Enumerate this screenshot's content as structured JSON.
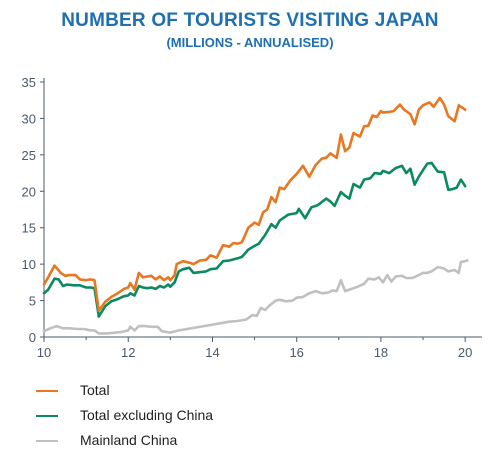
{
  "header": {
    "title": "NUMBER OF TOURISTS VISITING JAPAN",
    "subtitle": "(MILLIONS - ANNUALISED)"
  },
  "chart_data": {
    "type": "line",
    "title": "NUMBER OF TOURISTS VISITING JAPAN",
    "subtitle": "(MILLIONS - ANNUALISED)",
    "xlabel": "",
    "ylabel": "",
    "xlim": [
      10,
      20.4
    ],
    "ylim": [
      0,
      35
    ],
    "xticks": [
      10,
      12,
      14,
      16,
      18,
      20
    ],
    "yticks": [
      0,
      5,
      10,
      15,
      20,
      25,
      30,
      35
    ],
    "grid": false,
    "legend_position": "bottom-left",
    "series": [
      {
        "name": "Total",
        "color": "#e87722",
        "points": [
          [
            10.0,
            7.2
          ],
          [
            10.1,
            8.2
          ],
          [
            10.25,
            9.8
          ],
          [
            10.4,
            8.8
          ],
          [
            10.5,
            8.4
          ],
          [
            10.6,
            8.5
          ],
          [
            10.75,
            8.5
          ],
          [
            10.85,
            7.9
          ],
          [
            11.0,
            7.8
          ],
          [
            11.1,
            7.9
          ],
          [
            11.2,
            7.8
          ],
          [
            11.3,
            3.6
          ],
          [
            11.45,
            4.8
          ],
          [
            11.6,
            5.5
          ],
          [
            11.75,
            6.0
          ],
          [
            11.9,
            6.6
          ],
          [
            12.0,
            6.8
          ],
          [
            12.05,
            7.4
          ],
          [
            12.15,
            6.5
          ],
          [
            12.25,
            8.8
          ],
          [
            12.35,
            8.2
          ],
          [
            12.45,
            8.3
          ],
          [
            12.55,
            8.4
          ],
          [
            12.65,
            7.9
          ],
          [
            12.75,
            8.3
          ],
          [
            12.85,
            7.8
          ],
          [
            12.95,
            8.2
          ],
          [
            13.0,
            7.8
          ],
          [
            13.1,
            8.5
          ],
          [
            13.15,
            10.0
          ],
          [
            13.3,
            10.4
          ],
          [
            13.45,
            10.2
          ],
          [
            13.55,
            10.0
          ],
          [
            13.7,
            10.5
          ],
          [
            13.85,
            10.6
          ],
          [
            13.95,
            11.2
          ],
          [
            14.1,
            10.9
          ],
          [
            14.25,
            12.6
          ],
          [
            14.4,
            12.4
          ],
          [
            14.5,
            12.9
          ],
          [
            14.6,
            12.8
          ],
          [
            14.7,
            13.0
          ],
          [
            14.85,
            15.0
          ],
          [
            15.0,
            15.7
          ],
          [
            15.1,
            15.4
          ],
          [
            15.2,
            17.1
          ],
          [
            15.3,
            17.5
          ],
          [
            15.4,
            19.2
          ],
          [
            15.5,
            18.5
          ],
          [
            15.6,
            20.5
          ],
          [
            15.7,
            20.3
          ],
          [
            15.85,
            21.5
          ],
          [
            16.0,
            22.4
          ],
          [
            16.15,
            23.5
          ],
          [
            16.3,
            22.0
          ],
          [
            16.45,
            23.6
          ],
          [
            16.6,
            24.5
          ],
          [
            16.7,
            24.6
          ],
          [
            16.8,
            25.2
          ],
          [
            16.95,
            24.6
          ],
          [
            17.05,
            27.8
          ],
          [
            17.15,
            25.5
          ],
          [
            17.25,
            26.0
          ],
          [
            17.35,
            28.0
          ],
          [
            17.5,
            27.5
          ],
          [
            17.6,
            28.9
          ],
          [
            17.7,
            29.0
          ],
          [
            17.8,
            30.4
          ],
          [
            17.9,
            30.2
          ],
          [
            18.0,
            31.0
          ],
          [
            18.05,
            30.8
          ],
          [
            18.2,
            30.9
          ],
          [
            18.3,
            31.0
          ],
          [
            18.45,
            31.9
          ],
          [
            18.55,
            31.2
          ],
          [
            18.7,
            30.6
          ],
          [
            18.8,
            29.2
          ],
          [
            18.9,
            31.2
          ],
          [
            19.0,
            31.8
          ],
          [
            19.15,
            32.2
          ],
          [
            19.25,
            31.6
          ],
          [
            19.4,
            32.8
          ],
          [
            19.5,
            31.9
          ],
          [
            19.6,
            30.3
          ],
          [
            19.75,
            29.6
          ],
          [
            19.85,
            31.8
          ],
          [
            19.95,
            31.4
          ],
          [
            20.0,
            31.2
          ]
        ]
      },
      {
        "name": "Total excluding China",
        "color": "#0b8a5f",
        "points": [
          [
            10.0,
            6.0
          ],
          [
            10.1,
            6.5
          ],
          [
            10.25,
            8.0
          ],
          [
            10.35,
            7.9
          ],
          [
            10.45,
            7.0
          ],
          [
            10.55,
            7.2
          ],
          [
            10.7,
            7.1
          ],
          [
            10.85,
            7.1
          ],
          [
            11.0,
            6.8
          ],
          [
            11.1,
            6.8
          ],
          [
            11.2,
            6.7
          ],
          [
            11.3,
            2.8
          ],
          [
            11.45,
            4.2
          ],
          [
            11.6,
            4.9
          ],
          [
            11.75,
            5.2
          ],
          [
            11.9,
            5.6
          ],
          [
            12.0,
            5.7
          ],
          [
            12.05,
            6.0
          ],
          [
            12.15,
            5.7
          ],
          [
            12.25,
            7.0
          ],
          [
            12.35,
            6.8
          ],
          [
            12.45,
            6.7
          ],
          [
            12.55,
            6.8
          ],
          [
            12.65,
            6.6
          ],
          [
            12.75,
            7.0
          ],
          [
            12.85,
            6.8
          ],
          [
            12.95,
            7.2
          ],
          [
            13.0,
            6.9
          ],
          [
            13.1,
            7.5
          ],
          [
            13.2,
            9.0
          ],
          [
            13.3,
            9.3
          ],
          [
            13.45,
            9.5
          ],
          [
            13.55,
            8.8
          ],
          [
            13.7,
            8.9
          ],
          [
            13.85,
            9.0
          ],
          [
            13.95,
            9.3
          ],
          [
            14.1,
            9.4
          ],
          [
            14.25,
            10.4
          ],
          [
            14.4,
            10.5
          ],
          [
            14.6,
            10.8
          ],
          [
            14.7,
            11.0
          ],
          [
            14.85,
            12.0
          ],
          [
            15.0,
            12.5
          ],
          [
            15.1,
            12.8
          ],
          [
            15.25,
            14.0
          ],
          [
            15.4,
            15.5
          ],
          [
            15.5,
            15.0
          ],
          [
            15.6,
            16.0
          ],
          [
            15.8,
            16.8
          ],
          [
            16.0,
            17.0
          ],
          [
            16.05,
            17.6
          ],
          [
            16.2,
            16.3
          ],
          [
            16.35,
            17.8
          ],
          [
            16.5,
            18.1
          ],
          [
            16.7,
            19.0
          ],
          [
            16.8,
            18.6
          ],
          [
            16.9,
            18.0
          ],
          [
            17.05,
            19.9
          ],
          [
            17.15,
            19.4
          ],
          [
            17.25,
            19.0
          ],
          [
            17.35,
            21.0
          ],
          [
            17.5,
            20.5
          ],
          [
            17.6,
            21.6
          ],
          [
            17.75,
            21.8
          ],
          [
            17.85,
            22.5
          ],
          [
            18.0,
            22.4
          ],
          [
            18.05,
            22.8
          ],
          [
            18.2,
            22.5
          ],
          [
            18.35,
            23.2
          ],
          [
            18.5,
            23.5
          ],
          [
            18.6,
            22.5
          ],
          [
            18.7,
            23.1
          ],
          [
            18.8,
            20.9
          ],
          [
            18.9,
            22.0
          ],
          [
            19.0,
            22.9
          ],
          [
            19.1,
            23.8
          ],
          [
            19.2,
            23.9
          ],
          [
            19.35,
            22.7
          ],
          [
            19.5,
            22.6
          ],
          [
            19.6,
            20.2
          ],
          [
            19.7,
            20.3
          ],
          [
            19.8,
            20.5
          ],
          [
            19.9,
            21.6
          ],
          [
            20.0,
            20.7
          ]
        ]
      },
      {
        "name": "Mainland China",
        "color": "#c0c0c0",
        "points": [
          [
            10.0,
            0.8
          ],
          [
            10.15,
            1.2
          ],
          [
            10.3,
            1.5
          ],
          [
            10.45,
            1.2
          ],
          [
            10.6,
            1.2
          ],
          [
            10.8,
            1.1
          ],
          [
            10.95,
            1.1
          ],
          [
            11.1,
            0.9
          ],
          [
            11.2,
            0.9
          ],
          [
            11.3,
            0.5
          ],
          [
            11.5,
            0.5
          ],
          [
            11.7,
            0.6
          ],
          [
            11.85,
            0.7
          ],
          [
            12.0,
            0.9
          ],
          [
            12.05,
            1.4
          ],
          [
            12.15,
            0.9
          ],
          [
            12.25,
            1.5
          ],
          [
            12.4,
            1.5
          ],
          [
            12.55,
            1.4
          ],
          [
            12.7,
            1.4
          ],
          [
            12.8,
            0.8
          ],
          [
            13.0,
            0.6
          ],
          [
            13.2,
            0.9
          ],
          [
            13.4,
            1.1
          ],
          [
            13.6,
            1.3
          ],
          [
            13.8,
            1.5
          ],
          [
            14.0,
            1.7
          ],
          [
            14.2,
            1.9
          ],
          [
            14.4,
            2.1
          ],
          [
            14.6,
            2.2
          ],
          [
            14.8,
            2.4
          ],
          [
            14.95,
            3.0
          ],
          [
            15.05,
            2.9
          ],
          [
            15.15,
            4.0
          ],
          [
            15.25,
            3.7
          ],
          [
            15.35,
            4.3
          ],
          [
            15.5,
            5.0
          ],
          [
            15.6,
            5.1
          ],
          [
            15.75,
            4.9
          ],
          [
            15.9,
            5.0
          ],
          [
            16.0,
            5.4
          ],
          [
            16.15,
            5.5
          ],
          [
            16.3,
            6.0
          ],
          [
            16.45,
            6.3
          ],
          [
            16.6,
            6.0
          ],
          [
            16.75,
            6.1
          ],
          [
            16.85,
            6.4
          ],
          [
            16.95,
            6.3
          ],
          [
            17.05,
            7.8
          ],
          [
            17.15,
            6.3
          ],
          [
            17.3,
            6.6
          ],
          [
            17.45,
            6.9
          ],
          [
            17.6,
            7.3
          ],
          [
            17.7,
            8.0
          ],
          [
            17.85,
            7.9
          ],
          [
            17.95,
            8.2
          ],
          [
            18.05,
            7.5
          ],
          [
            18.15,
            8.5
          ],
          [
            18.25,
            7.6
          ],
          [
            18.35,
            8.3
          ],
          [
            18.5,
            8.4
          ],
          [
            18.6,
            8.1
          ],
          [
            18.75,
            8.1
          ],
          [
            18.9,
            8.5
          ],
          [
            19.0,
            8.8
          ],
          [
            19.1,
            8.8
          ],
          [
            19.2,
            9.0
          ],
          [
            19.35,
            9.6
          ],
          [
            19.5,
            9.4
          ],
          [
            19.6,
            9.0
          ],
          [
            19.75,
            9.2
          ],
          [
            19.85,
            8.8
          ],
          [
            19.9,
            10.3
          ],
          [
            20.0,
            10.4
          ],
          [
            20.05,
            10.5
          ]
        ]
      }
    ]
  },
  "legend": {
    "items": [
      {
        "label": "Total",
        "color": "#e87722"
      },
      {
        "label": "Total excluding China",
        "color": "#0b8a5f"
      },
      {
        "label": "Mainland China",
        "color": "#c0c0c0"
      }
    ]
  },
  "colors": {
    "title": "#1f6fb2",
    "axis": "#4a5a6a",
    "tick_label": "#4a5a6a"
  }
}
